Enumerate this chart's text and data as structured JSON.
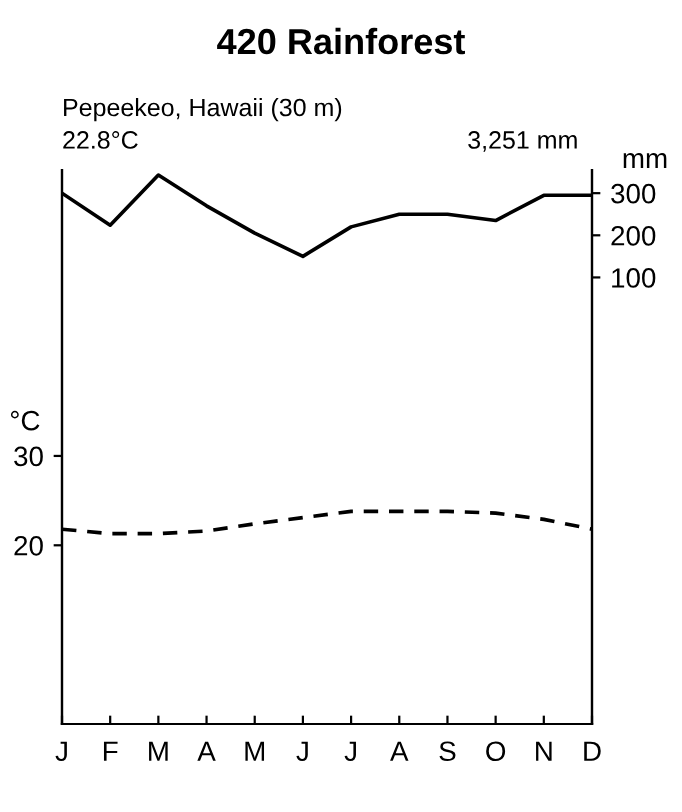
{
  "chart_data": {
    "type": "line",
    "title": "420 Rainforest",
    "annotations": [
      "Pepeekeo, Hawaii (30 m)",
      "22.8°C",
      "3,251 mm"
    ],
    "categories": [
      "J",
      "F",
      "M",
      "A",
      "M",
      "J",
      "J",
      "A",
      "S",
      "O",
      "N",
      "D"
    ],
    "series": [
      {
        "color": "#000000",
        "line_style": "dashed",
        "values": [
          21.8,
          21.3,
          21.3,
          21.6,
          22.4,
          23.1,
          23.8,
          23.8,
          23.8,
          23.6,
          22.9,
          21.8
        ]
      },
      {
        "color": "#000000",
        "line_style": "solid",
        "axis": "y2",
        "values": [
          300,
          224,
          343,
          270,
          205,
          150,
          220,
          250,
          250,
          235,
          295,
          295
        ]
      }
    ],
    "ylabel": "°C",
    "y2label": "mm",
    "ylim": [
      0,
      62
    ],
    "yticks": [
      20,
      30
    ],
    "y2lim": [
      -960,
      355
    ],
    "y2ticks": [
      100,
      200,
      300
    ],
    "grid": false,
    "legend": false,
    "marker": "none"
  }
}
